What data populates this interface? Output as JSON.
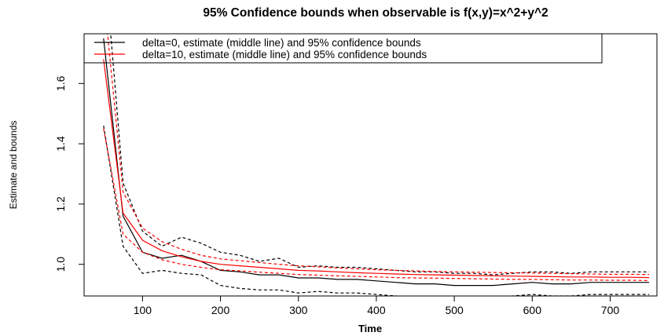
{
  "chart_data": {
    "type": "line",
    "title": "95% Confidence bounds when observable is f(x,y)=x^2+y^2",
    "xlabel": "Time",
    "ylabel": "Estimate and bounds",
    "xlim": [
      25,
      760
    ],
    "ylim": [
      0.895,
      1.765
    ],
    "x_ticks": [
      100,
      200,
      300,
      400,
      500,
      600,
      700
    ],
    "y_ticks": [
      1.0,
      1.2,
      1.4,
      1.6
    ],
    "x": [
      50,
      75,
      100,
      125,
      150,
      175,
      200,
      225,
      250,
      275,
      300,
      325,
      350,
      375,
      400,
      425,
      450,
      475,
      500,
      525,
      550,
      575,
      600,
      625,
      650,
      675,
      700,
      725,
      750
    ],
    "legend_position": "top",
    "series": [
      {
        "name": "delta=0, estimate (middle line) and  95% confidence bounds",
        "color": "#000000",
        "values": [
          1.75,
          1.16,
          1.04,
          1.02,
          1.03,
          1.01,
          0.98,
          0.975,
          0.965,
          0.965,
          0.955,
          0.955,
          0.95,
          0.95,
          0.945,
          0.94,
          0.935,
          0.935,
          0.93,
          0.93,
          0.93,
          0.935,
          0.94,
          0.935,
          0.935,
          0.94,
          0.94,
          0.94,
          0.94
        ],
        "lower": [
          1.46,
          1.06,
          0.97,
          0.98,
          0.97,
          0.965,
          0.93,
          0.92,
          0.915,
          0.915,
          0.905,
          0.91,
          0.905,
          0.905,
          0.9,
          0.895,
          0.89,
          0.89,
          0.885,
          0.885,
          0.89,
          0.895,
          0.9,
          0.895,
          0.895,
          0.9,
          0.9,
          0.9,
          0.9
        ],
        "upper": [
          2.05,
          1.27,
          1.11,
          1.06,
          1.09,
          1.07,
          1.04,
          1.03,
          1.01,
          1.02,
          0.99,
          0.995,
          0.99,
          0.99,
          0.985,
          0.98,
          0.975,
          0.975,
          0.97,
          0.97,
          0.965,
          0.97,
          0.975,
          0.975,
          0.97,
          0.975,
          0.975,
          0.975,
          0.975
        ]
      },
      {
        "name": "delta=10, estimate (middle line) and  95% confidence bounds",
        "color": "#ff0000",
        "values": [
          1.68,
          1.17,
          1.08,
          1.045,
          1.025,
          1.01,
          1.0,
          0.995,
          0.99,
          0.985,
          0.98,
          0.978,
          0.975,
          0.972,
          0.97,
          0.968,
          0.966,
          0.965,
          0.964,
          0.963,
          0.962,
          0.961,
          0.96,
          0.959,
          0.958,
          0.958,
          0.957,
          0.957,
          0.956
        ],
        "lower": [
          1.45,
          1.1,
          1.04,
          1.015,
          1.0,
          0.99,
          0.982,
          0.978,
          0.974,
          0.97,
          0.966,
          0.964,
          0.962,
          0.96,
          0.958,
          0.956,
          0.955,
          0.954,
          0.953,
          0.952,
          0.951,
          0.95,
          0.95,
          0.949,
          0.948,
          0.948,
          0.947,
          0.947,
          0.946
        ],
        "upper": [
          1.9,
          1.24,
          1.12,
          1.075,
          1.05,
          1.03,
          1.018,
          1.012,
          1.006,
          1.0,
          0.995,
          0.992,
          0.988,
          0.985,
          0.982,
          0.98,
          0.978,
          0.976,
          0.975,
          0.974,
          0.973,
          0.972,
          0.971,
          0.97,
          0.969,
          0.968,
          0.967,
          0.967,
          0.966
        ]
      }
    ]
  }
}
